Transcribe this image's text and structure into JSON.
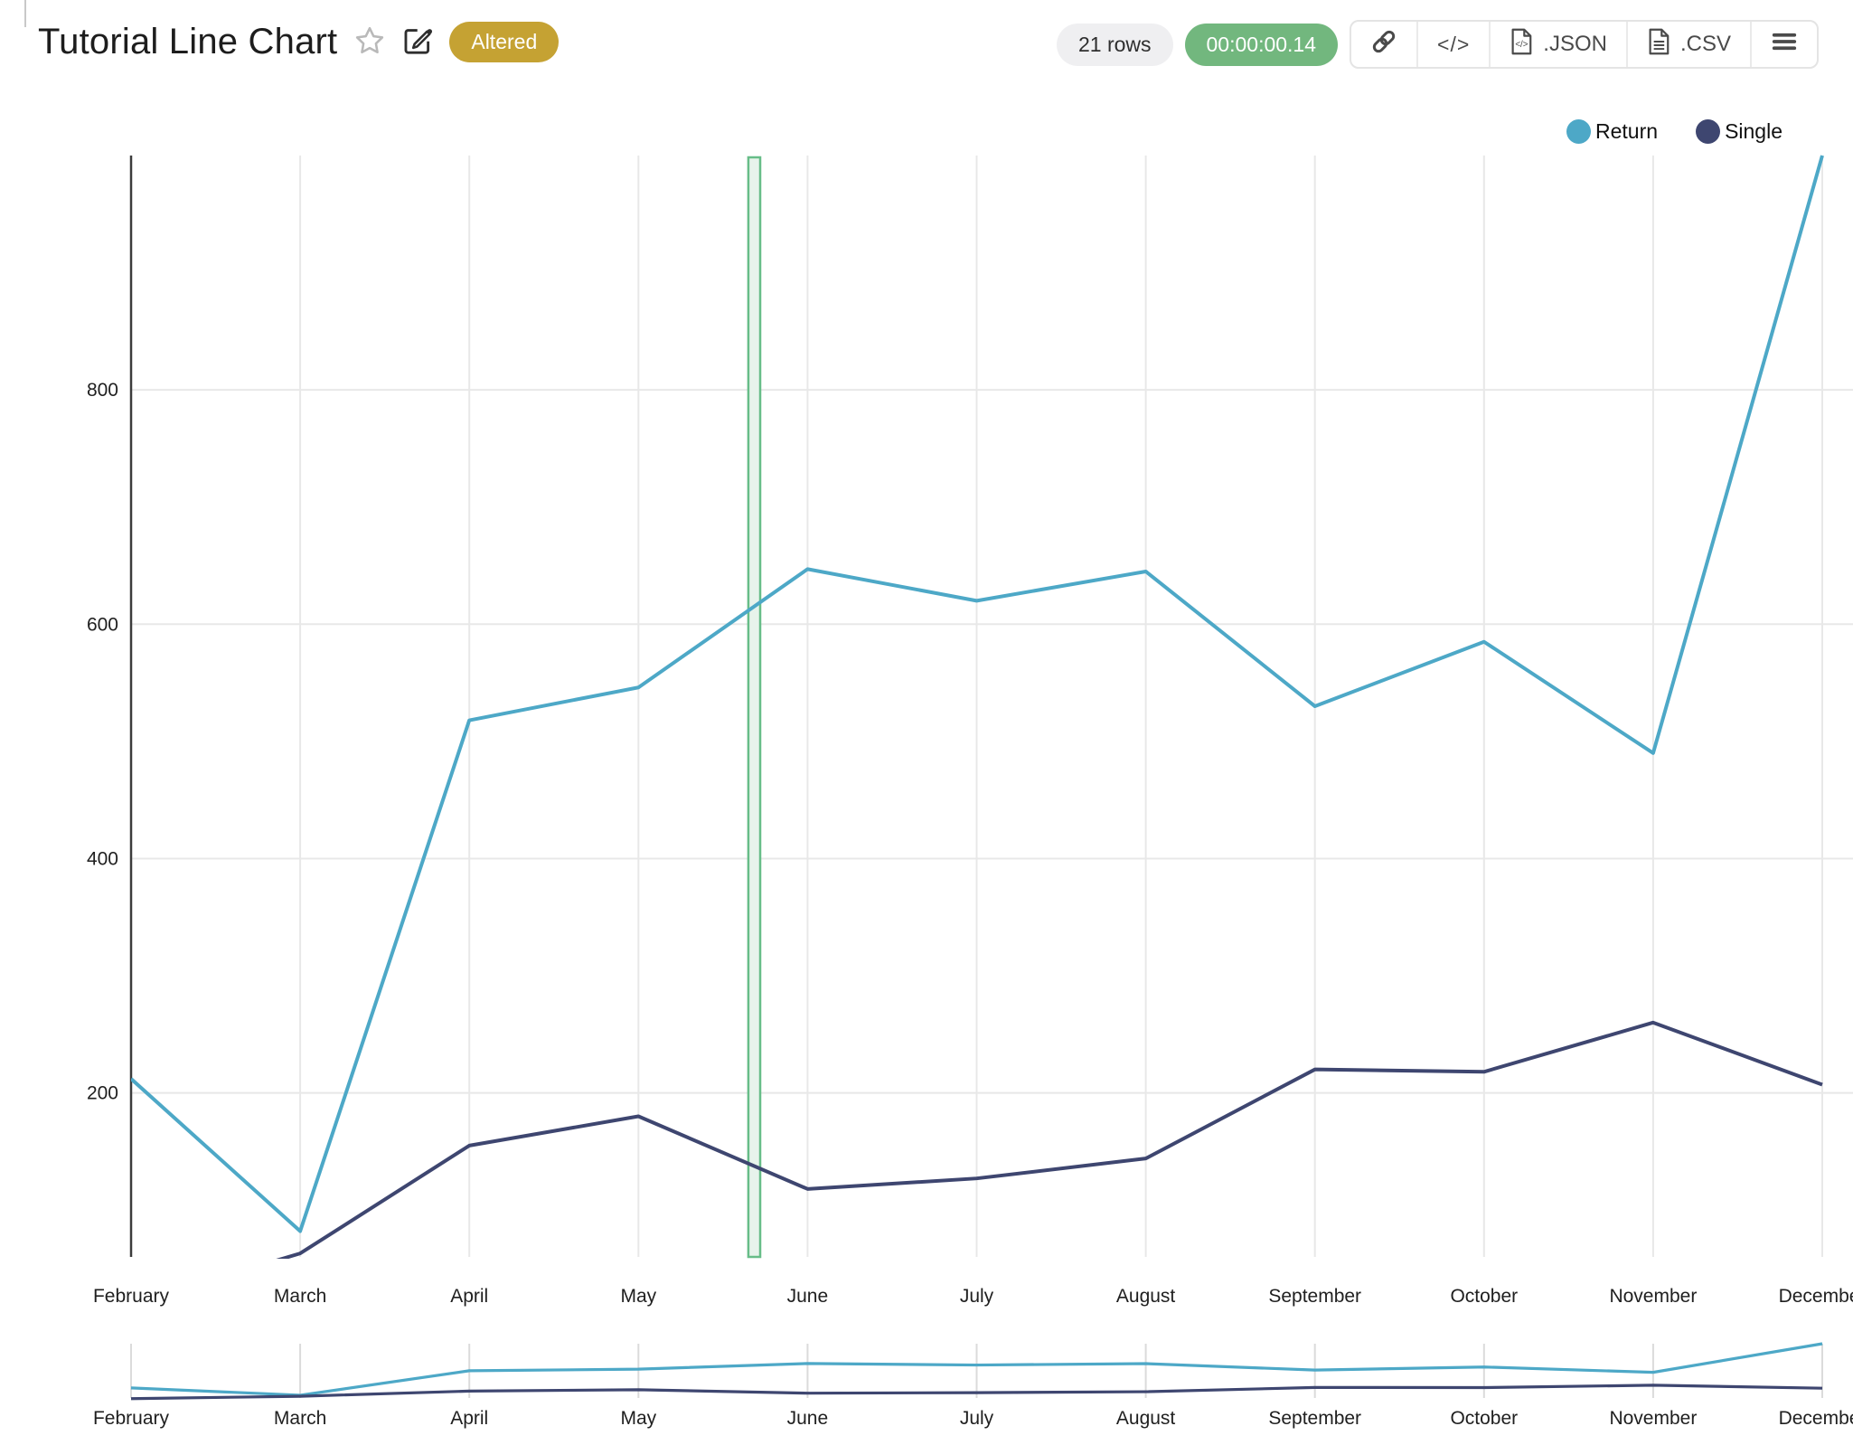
{
  "header": {
    "title": "Tutorial Line Chart",
    "status_badge": "Altered",
    "rows_pill": "21 rows",
    "timer_pill": "00:00:00.14",
    "toolbar": {
      "code_label": "</>",
      "json_label": ".JSON",
      "csv_label": ".CSV"
    },
    "icons": [
      "star-icon",
      "edit-icon",
      "link-icon",
      "code-icon",
      "file-json-icon",
      "file-csv-icon",
      "menu-icon"
    ]
  },
  "colors": {
    "badge_bg": "#C5A233",
    "rows_bg": "#EFEFF1",
    "timer_bg": "#72B77E",
    "return_series": "#4DA8C7",
    "single_series": "#3E4670",
    "band_border": "#67BD88",
    "band_fill": "#E7F3EB",
    "axis": "#3C3C3C",
    "grid": "#E8E8E8",
    "mini_tick": "#DBDBDB",
    "label": "#1F1F1F"
  },
  "chart_data": {
    "type": "line",
    "title": "Tutorial Line Chart",
    "categories": [
      "February",
      "March",
      "April",
      "May",
      "June",
      "July",
      "August",
      "September",
      "October",
      "November",
      "December"
    ],
    "series": [
      {
        "name": "Return",
        "color": "#4DA8C7",
        "values": [
          212,
          82,
          518,
          546,
          647,
          620,
          645,
          530,
          585,
          490,
          1000
        ]
      },
      {
        "name": "Single",
        "color": "#3E4670",
        "values": [
          20,
          63,
          155,
          180,
          118,
          127,
          144,
          220,
          218,
          260,
          207
        ]
      }
    ],
    "y_ticks": [
      200,
      400,
      600,
      800
    ],
    "ylim": [
      60,
      1000
    ],
    "xlabel": "",
    "ylabel": "",
    "grid": true,
    "legend_position": "top-right",
    "legend": [
      "Return",
      "Single"
    ],
    "highlight_band": {
      "from_index": 3.65,
      "to_index": 3.72
    },
    "has_overview_strip": true
  }
}
